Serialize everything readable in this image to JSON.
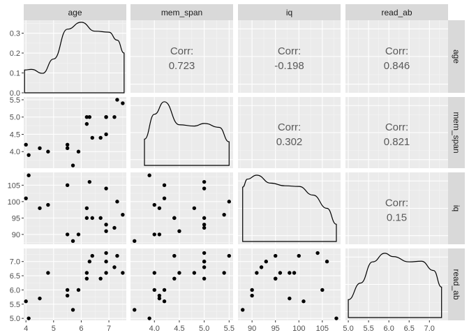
{
  "chart_data": {
    "type": "scatter-matrix",
    "variables": [
      "age",
      "mem_span",
      "iq",
      "read_ab"
    ],
    "axis_ticks": {
      "age": [
        4,
        5,
        6,
        7
      ],
      "mem_span": [
        4.0,
        4.5,
        5.0,
        5.5
      ],
      "iq": [
        90,
        95,
        100,
        105
      ],
      "read_ab": [
        5.0,
        5.5,
        6.0,
        6.5,
        7.0
      ]
    },
    "axis_tick_labels": {
      "age": [
        "4",
        "5",
        "6",
        "7"
      ],
      "mem_span": [
        "4.0",
        "4.5",
        "5.0",
        "5.5"
      ],
      "iq": [
        "90",
        "95",
        "100",
        "105"
      ],
      "read_ab": [
        "5.0",
        "5.5",
        "6.0",
        "6.5",
        "7.0"
      ]
    },
    "axis_ranges": {
      "age": [
        3.92,
        7.63
      ],
      "mem_span": [
        3.52,
        5.58
      ],
      "iq": [
        87.0,
        108.9
      ],
      "read_ab": [
        4.93,
        7.46
      ]
    },
    "age_density": {
      "ylim": [
        0,
        0.365
      ],
      "ticks": [
        0.0,
        0.1,
        0.2,
        0.3
      ],
      "tick_labels": [
        "0.0",
        "0.1",
        "0.2",
        "0.3"
      ],
      "x": [
        3.95,
        4.2,
        4.6,
        5.0,
        5.5,
        6.0,
        6.5,
        7.0,
        7.3,
        7.55
      ],
      "y": [
        0.115,
        0.118,
        0.098,
        0.17,
        0.32,
        0.355,
        0.31,
        0.305,
        0.265,
        0.2
      ]
    },
    "densities": {
      "mem_span": {
        "x": [
          3.8,
          4.0,
          4.2,
          4.5,
          4.8,
          5.0,
          5.3,
          5.5
        ],
        "h": [
          0.4,
          0.78,
          0.97,
          0.62,
          0.6,
          0.64,
          0.58,
          0.36
        ]
      },
      "iq": {
        "x": [
          88,
          89,
          91,
          94,
          97,
          100,
          103,
          106,
          108
        ],
        "h": [
          0.82,
          0.94,
          1.0,
          0.88,
          0.84,
          0.83,
          0.7,
          0.5,
          0.26
        ]
      },
      "read_ab": {
        "x": [
          5.0,
          5.3,
          5.6,
          5.9,
          6.1,
          6.5,
          6.8,
          7.1,
          7.3
        ],
        "h": [
          0.27,
          0.52,
          0.84,
          0.97,
          0.92,
          0.84,
          0.85,
          0.71,
          0.46
        ]
      }
    },
    "observations": {
      "age": [
        4.0,
        4.1,
        6.9,
        7.5,
        5.5,
        6.3,
        5.9,
        4.5,
        7.3,
        5.5,
        6.9,
        5.7,
        7.2,
        6.4,
        4.8,
        6.2,
        6.7,
        6.9,
        6.2
      ],
      "mem_span": [
        4.2,
        3.9,
        5.0,
        5.4,
        4.2,
        5.0,
        4.0,
        4.1,
        5.5,
        4.1,
        4.5,
        3.6,
        5.0,
        4.4,
        4.0,
        4.8,
        4.4,
        5.0,
        5.0
      ],
      "iq": [
        101,
        108,
        104,
        96,
        105,
        106,
        90,
        98,
        100,
        90,
        91,
        88,
        92,
        95,
        99,
        98,
        95,
        93,
        95
      ],
      "read_ab": [
        5.6,
        5.0,
        7.3,
        6.6,
        6.0,
        7.0,
        6.0,
        5.7,
        7.2,
        5.8,
        6.6,
        5.3,
        6.8,
        7.2,
        6.6,
        6.6,
        6.4,
        7.0,
        6.4
      ]
    },
    "correlations": [
      {
        "row": 0,
        "col": 1,
        "label": "Corr:",
        "value": "0.723"
      },
      {
        "row": 0,
        "col": 2,
        "label": "Corr:",
        "value": "-0.198"
      },
      {
        "row": 0,
        "col": 3,
        "label": "Corr:",
        "value": "0.846"
      },
      {
        "row": 1,
        "col": 2,
        "label": "Corr:",
        "value": "0.302"
      },
      {
        "row": 1,
        "col": 3,
        "label": "Corr:",
        "value": "0.821"
      },
      {
        "row": 2,
        "col": 3,
        "label": "Corr:",
        "value": "0.15"
      }
    ],
    "colors": {
      "panel_bg": "#ebebeb",
      "grid_major": "#ffffff",
      "grid_minor": "#f5f5f5",
      "strip_bg": "#d9d9d9",
      "point": "#000000",
      "text": "#4d4d4d",
      "corr_text": "#595959"
    }
  }
}
